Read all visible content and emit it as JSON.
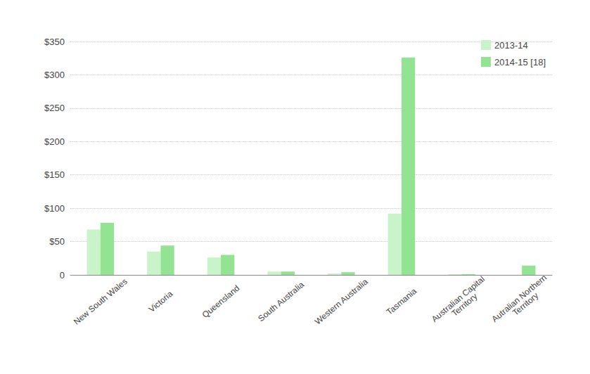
{
  "chart_data": {
    "type": "bar",
    "categories": [
      "New South Wales",
      "Victoria",
      "Queensland",
      "South Australia",
      "Western Australia",
      "Tasmania",
      "Australian Capital Territory",
      "Autralian Northern Territory"
    ],
    "series": [
      {
        "name": "2013-14",
        "color": "#c9f3c9",
        "values": [
          68,
          35,
          26,
          5,
          2,
          92,
          1,
          0
        ]
      },
      {
        "name": "2014-15 [18]",
        "color": "#92e392",
        "values": [
          78,
          44,
          30,
          5,
          4,
          326,
          1,
          14
        ]
      }
    ],
    "ylim": [
      0,
      350
    ],
    "yticks": [
      0,
      {
        "value": 50,
        "label": "$50"
      },
      {
        "value": 100,
        "label": "$100"
      },
      {
        "value": 150,
        "label": "$150"
      },
      {
        "value": 200,
        "label": "$200"
      },
      {
        "value": 250,
        "label": "$250"
      },
      {
        "value": 300,
        "label": "$300"
      },
      {
        "value": 350,
        "label": "$350"
      }
    ],
    "grid": true,
    "legend": "top-right"
  }
}
